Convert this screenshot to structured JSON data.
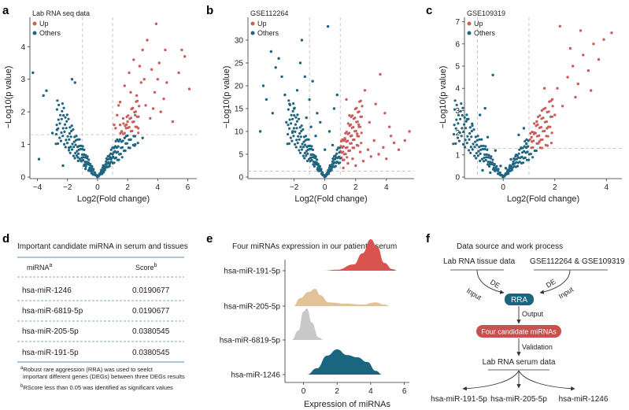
{
  "panel_letters": [
    "a",
    "b",
    "c",
    "d",
    "e",
    "f"
  ],
  "colors": {
    "up": "#cd5c5c",
    "others": "#1f6580",
    "ridge_red": "#d9534f",
    "ridge_tan": "#e3c29b",
    "ridge_gray": "#c8c8c8",
    "ridge_teal": "#1a6580",
    "rra": "#1a6580",
    "candidates": "#c9504c",
    "rule": "#5a8fb8"
  },
  "chart_data": [
    {
      "type": "scatter",
      "panel": "a",
      "legend_title": "Lab RNA seq data",
      "series": [
        {
          "name": "Up",
          "points": [
            [
              1.1,
              1.6
            ],
            [
              1.3,
              1.9
            ],
            [
              1.5,
              2.3
            ],
            [
              1.6,
              1.4
            ],
            [
              1.8,
              2.8
            ],
            [
              2.0,
              1.7
            ],
            [
              2.1,
              3.2
            ],
            [
              2.3,
              2.1
            ],
            [
              2.4,
              3.6
            ],
            [
              2.6,
              2.5
            ],
            [
              2.7,
              1.5
            ],
            [
              2.9,
              2.9
            ],
            [
              3.0,
              3.9
            ],
            [
              3.2,
              2.2
            ],
            [
              3.3,
              4.2
            ],
            [
              3.5,
              1.8
            ],
            [
              3.6,
              3.3
            ],
            [
              3.8,
              2.6
            ],
            [
              4.0,
              3.0
            ],
            [
              4.2,
              2.0
            ],
            [
              4.4,
              2.4
            ],
            [
              4.6,
              2.9
            ],
            [
              5.0,
              1.7
            ],
            [
              5.4,
              3.2
            ],
            [
              5.6,
              3.9
            ],
            [
              5.8,
              3.7
            ],
            [
              6.1,
              2.7
            ],
            [
              3.9,
              4.7
            ],
            [
              4.5,
              3.9
            ],
            [
              2.2,
              2.6
            ],
            [
              1.4,
              2.2
            ],
            [
              1.2,
              1.5
            ],
            [
              1.7,
              1.8
            ],
            [
              2.5,
              1.9
            ],
            [
              3.1,
              3.0
            ],
            [
              3.7,
              2.1
            ],
            [
              4.1,
              3.5
            ],
            [
              1.9,
              1.5
            ],
            [
              2.8,
              3.4
            ],
            [
              1.5,
              1.6
            ]
          ]
        },
        {
          "name": "Others",
          "points": [
            [
              -4.3,
              3.2
            ],
            [
              -3.9,
              0.55
            ],
            [
              -3.6,
              2.5
            ],
            [
              -3.4,
              2.65
            ],
            [
              -3.0,
              1.35
            ],
            [
              -2.7,
              1.45
            ],
            [
              -2.3,
              0.35
            ],
            [
              -1.7,
              3.0
            ],
            [
              -1.5,
              2.9
            ],
            [
              -1.3,
              0.6
            ],
            [
              -0.9,
              0.35
            ],
            [
              -0.6,
              0.2
            ],
            [
              -0.3,
              0.08
            ],
            [
              0.0,
              0.02
            ],
            [
              0.3,
              0.1
            ],
            [
              0.6,
              0.3
            ],
            [
              0.9,
              0.55
            ],
            [
              1.1,
              0.9
            ],
            [
              1.4,
              1.1
            ],
            [
              1.8,
              1.2
            ],
            [
              2.2,
              1.15
            ],
            [
              3.0,
              1.2
            ],
            [
              -0.8,
              0.25
            ],
            [
              0.8,
              0.4
            ],
            [
              -1.1,
              0.5
            ],
            [
              1.0,
              0.7
            ],
            [
              -0.4,
              0.12
            ],
            [
              0.4,
              0.15
            ],
            [
              -1.9,
              0.9
            ],
            [
              2.5,
              1.0
            ]
          ]
        }
      ],
      "xlabel": "Log2(Fold change)",
      "ylabel": "−Log10(p value)",
      "xticks": [
        "−4",
        "−2",
        "0",
        "2",
        "4",
        "6"
      ],
      "yticks": [
        "0",
        "1",
        "2",
        "3",
        "4"
      ],
      "xlim": [
        -4.5,
        6.6
      ],
      "ylim": [
        0,
        4.9
      ],
      "cutoffs": {
        "x": [
          -1,
          1
        ],
        "y": 1.3
      }
    },
    {
      "type": "scatter",
      "panel": "b",
      "legend_title": "GSE112264",
      "series": [
        {
          "name": "Up",
          "points": [
            [
              1.2,
              2.0
            ],
            [
              1.5,
              3.0
            ],
            [
              1.8,
              4.0
            ],
            [
              2.0,
              2.5
            ],
            [
              2.3,
              5.5
            ],
            [
              2.5,
              3.5
            ],
            [
              2.8,
              6.0
            ],
            [
              3.0,
              4.5
            ],
            [
              3.2,
              8.0
            ],
            [
              3.5,
              5.0
            ],
            [
              3.8,
              6.5
            ],
            [
              4.0,
              4.0
            ],
            [
              4.3,
              9.0
            ],
            [
              4.5,
              7.5
            ],
            [
              4.8,
              6.0
            ],
            [
              5.2,
              8.0
            ],
            [
              5.5,
              10.0
            ],
            [
              1.4,
              17.0
            ],
            [
              2.2,
              11.5
            ],
            [
              3.3,
              16.0
            ],
            [
              2.6,
              19.0
            ],
            [
              3.6,
              22.5
            ],
            [
              3.9,
              14.0
            ],
            [
              1.6,
              13.5
            ],
            [
              2.9,
              12.0
            ],
            [
              4.2,
              11.0
            ],
            [
              1.3,
              8.5
            ],
            [
              2.1,
              9.5
            ]
          ]
        },
        {
          "name": "Others",
          "points": [
            [
              -4.0,
              20.0
            ],
            [
              -3.5,
              27.5
            ],
            [
              -3.2,
              24.0
            ],
            [
              -3.0,
              26.0
            ],
            [
              -2.8,
              22.0
            ],
            [
              -2.6,
              18.0
            ],
            [
              -2.3,
              16.0
            ],
            [
              -2.0,
              15.0
            ],
            [
              -1.8,
              19.0
            ],
            [
              -1.6,
              25.0
            ],
            [
              -1.3,
              22.0
            ],
            [
              -1.0,
              17.0
            ],
            [
              -0.8,
              21.0
            ],
            [
              -0.5,
              14.0
            ],
            [
              -0.3,
              12.0
            ],
            [
              0.0,
              6.0
            ],
            [
              0.3,
              10.0
            ],
            [
              0.6,
              15.0
            ],
            [
              0.8,
              18.0
            ],
            [
              -1.2,
              13.0
            ],
            [
              -2.5,
              12.0
            ],
            [
              -3.4,
              14.0
            ],
            [
              -4.2,
              10.0
            ],
            [
              -3.8,
              17.0
            ],
            [
              -0.6,
              9.0
            ],
            [
              0.5,
              7.0
            ],
            [
              -1.5,
              30.0
            ],
            [
              0.2,
              33.0
            ],
            [
              -2.1,
              10.0
            ],
            [
              -0.9,
              11.0
            ]
          ]
        }
      ],
      "xlabel": "Log2(Fold change)",
      "ylabel": "−Log10(p value)",
      "xticks": [
        "−2",
        "0",
        "2",
        "4"
      ],
      "yticks": [
        "0",
        "5",
        "10",
        "15",
        "20",
        "25",
        "30"
      ],
      "xlim": [
        -5.0,
        5.8
      ],
      "ylim": [
        0,
        35
      ],
      "cutoffs": {
        "x": [
          -1,
          1
        ],
        "y": 1.3
      }
    },
    {
      "type": "scatter",
      "panel": "c",
      "legend_title": "GSE109319",
      "series": [
        {
          "name": "Up",
          "points": [
            [
              1.1,
              1.8
            ],
            [
              1.3,
              2.5
            ],
            [
              1.5,
              3.0
            ],
            [
              1.7,
              2.2
            ],
            [
              1.9,
              3.5
            ],
            [
              2.1,
              4.0
            ],
            [
              2.3,
              3.2
            ],
            [
              2.5,
              4.5
            ],
            [
              2.7,
              5.0
            ],
            [
              2.9,
              4.2
            ],
            [
              3.1,
              5.5
            ],
            [
              3.3,
              4.8
            ],
            [
              3.5,
              6.0
            ],
            [
              3.7,
              5.3
            ],
            [
              3.9,
              6.2
            ],
            [
              4.2,
              6.5
            ],
            [
              2.2,
              6.8
            ],
            [
              2.6,
              5.8
            ],
            [
              3.0,
              6.6
            ],
            [
              1.6,
              4.0
            ],
            [
              1.4,
              1.6
            ],
            [
              2.0,
              2.8
            ],
            [
              2.8,
              3.6
            ],
            [
              3.4,
              3.9
            ],
            [
              1.2,
              2.0
            ]
          ]
        },
        {
          "name": "Others",
          "points": [
            [
              -0.9,
              2.8
            ],
            [
              -0.7,
              3.1
            ],
            [
              -0.6,
              1.8
            ],
            [
              -0.4,
              4.6
            ],
            [
              -0.3,
              1.2
            ],
            [
              -0.1,
              0.5
            ],
            [
              0.0,
              0.05
            ],
            [
              0.1,
              0.4
            ],
            [
              0.3,
              0.8
            ],
            [
              0.5,
              1.0
            ],
            [
              0.7,
              1.3
            ],
            [
              0.9,
              1.5
            ],
            [
              -0.8,
              0.3
            ],
            [
              -0.5,
              0.2
            ],
            [
              0.6,
              1.9
            ],
            [
              0.8,
              2.2
            ],
            [
              0.4,
              0.6
            ],
            [
              -0.2,
              0.15
            ],
            [
              -1.2,
              2.4
            ],
            [
              -1.4,
              2.6
            ]
          ]
        }
      ],
      "xlabel": "Log2(Fold change)",
      "ylabel": "−Log10(p value)",
      "xticks": [
        "0",
        "2",
        "4"
      ],
      "yticks": [
        "0",
        "1",
        "2",
        "3",
        "4",
        "5",
        "6",
        "7"
      ],
      "xlim": [
        -1.5,
        4.6
      ],
      "ylim": [
        0,
        7.2
      ],
      "cutoffs": {
        "x": [
          -1,
          1
        ],
        "y": 1.3
      }
    },
    {
      "type": "area",
      "panel": "e",
      "title": "Four miRNAs expression in our patients’ serum",
      "xlabel": "Expression of miRNAs",
      "xticks": [
        "0",
        "2",
        "4",
        "6"
      ],
      "xlim": [
        -1.1,
        6.3
      ],
      "series": [
        {
          "name": "hsa-miR-191-5p",
          "density": [
            [
              1.2,
              0
            ],
            [
              2.0,
              0.03
            ],
            [
              3.0,
              0.2
            ],
            [
              3.5,
              0.55
            ],
            [
              4.0,
              1.0
            ],
            [
              4.4,
              0.75
            ],
            [
              4.8,
              0.25
            ],
            [
              5.3,
              0.05
            ],
            [
              5.6,
              0
            ]
          ]
        },
        {
          "name": "hsa-miR-205-5p",
          "density": [
            [
              -0.6,
              0
            ],
            [
              -0.2,
              0.25
            ],
            [
              0.3,
              0.45
            ],
            [
              0.7,
              0.55
            ],
            [
              1.0,
              0.35
            ],
            [
              1.5,
              0.12
            ],
            [
              2.5,
              0.08
            ],
            [
              3.5,
              0.05
            ],
            [
              4.3,
              0.12
            ],
            [
              4.8,
              0.05
            ],
            [
              5.2,
              0
            ]
          ]
        },
        {
          "name": "hsa-miR-6819-5p",
          "density": [
            [
              -0.7,
              0
            ],
            [
              -0.3,
              0.3
            ],
            [
              0.0,
              0.9
            ],
            [
              0.2,
              1.0
            ],
            [
              0.5,
              0.55
            ],
            [
              0.9,
              0.08
            ],
            [
              1.2,
              0
            ]
          ]
        },
        {
          "name": "hsa-miR-1246",
          "density": [
            [
              0.2,
              0
            ],
            [
              0.8,
              0.2
            ],
            [
              1.4,
              0.6
            ],
            [
              2.0,
              0.8
            ],
            [
              2.6,
              0.62
            ],
            [
              3.2,
              0.55
            ],
            [
              3.8,
              0.4
            ],
            [
              4.3,
              0.12
            ],
            [
              4.7,
              0
            ]
          ]
        }
      ]
    }
  ],
  "table": {
    "title": "Important candidate miRNA in serum and tissues",
    "col_mirna": "miRNA",
    "col_mirna_sup": "a",
    "col_score": "Score",
    "col_score_sup": "b",
    "rows": [
      {
        "mirna": "hsa-miR-1246",
        "score": "0.0190677"
      },
      {
        "mirna": "hsa-miR-6819-5p",
        "score": "0.0190677"
      },
      {
        "mirna": "hsa-miR-205-5p",
        "score": "0.0380545"
      },
      {
        "mirna": "hsa-miR-191-5p",
        "score": "0.0380545"
      }
    ],
    "footnote_a_sup": "a",
    "footnote_a_line1": "Robust rare aggression (RRA) was used to seelct",
    "footnote_a_line2": "important different genes (DEGs) between three DEGs results",
    "footnote_b_sup": "b",
    "footnote_b": "RScore less than 0.05 was identified as significant values"
  },
  "flow": {
    "title": "Data source and work process",
    "source_left": "Lab RNA tissue data",
    "source_right": "GSE112264 & GSE109319",
    "de_left": "DE",
    "de_right": "DE",
    "input_left": "Input",
    "input_right": "Input",
    "rra": "RRA",
    "output": "Output",
    "candidates": "Four candidate miRNAs",
    "validation": "Validation",
    "serum": "Lab RNA serum data",
    "out1": "hsa-miR-191-5p",
    "out2": "hsa-miR-205-5p",
    "out3": "hsa-miR-1246"
  }
}
